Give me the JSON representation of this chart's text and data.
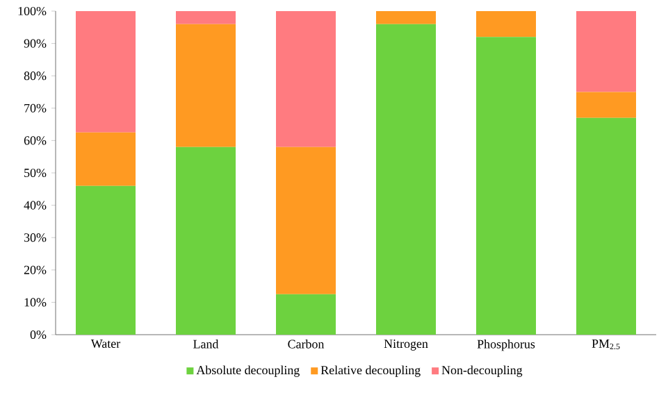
{
  "chart_data": {
    "type": "bar",
    "stacked": true,
    "categories": [
      "Water",
      "Land",
      "Carbon",
      "Nitrogen",
      "Phosphorus",
      "PM$_{2.5}$"
    ],
    "series": [
      {
        "name": "Absolute decoupling",
        "color": "#6dd23f",
        "values": [
          46,
          58,
          12.5,
          96,
          92,
          67
        ]
      },
      {
        "name": "Relative decoupling",
        "color": "#ff9a22",
        "values": [
          16.5,
          38,
          45.5,
          4,
          8,
          8
        ]
      },
      {
        "name": "Non-decoupling",
        "color": "#ff7b80",
        "values": [
          37.5,
          4,
          42,
          0,
          0,
          25
        ]
      }
    ],
    "ylim": [
      0,
      100
    ],
    "yticks": [
      {
        "value": 0,
        "label": "0%"
      },
      {
        "value": 10,
        "label": "10%"
      },
      {
        "value": 20,
        "label": "20%"
      },
      {
        "value": 30,
        "label": "30%"
      },
      {
        "value": 40,
        "label": "40%"
      },
      {
        "value": 50,
        "label": "50%"
      },
      {
        "value": 60,
        "label": "60%"
      },
      {
        "value": 70,
        "label": "70%"
      },
      {
        "value": 80,
        "label": "80%"
      },
      {
        "value": 90,
        "label": "90%"
      },
      {
        "value": 100,
        "label": "100%"
      }
    ],
    "legend": "bottom",
    "grid": false
  }
}
